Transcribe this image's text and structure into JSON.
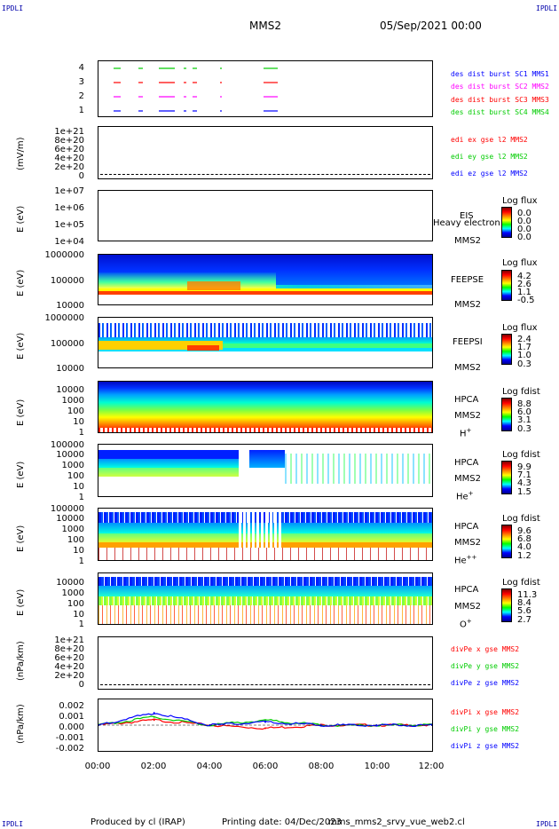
{
  "corners": {
    "tl": "IPDLI",
    "tr": "IPDLI",
    "bl": "IPDLI",
    "br": "IPDLI"
  },
  "header": {
    "spacecraft": "MMS2",
    "datetime": "05/Sep/2021 00:00"
  },
  "colors": {
    "red": "#ff0000",
    "magenta": "#ff00ff",
    "green": "#00cc00",
    "blue": "#0000ff"
  },
  "panels": {
    "p1": {
      "yticks": [
        "4",
        "3",
        "2",
        "1"
      ],
      "legend": [
        "des dist burst SC1 MMS1",
        "des dist burst SC2 MMS2",
        "des dist burst SC3 MMS3",
        "des dist burst SC4 MMS4"
      ]
    },
    "p2": {
      "ylabel": "(mV/m)",
      "yticks": [
        "1e+21",
        "8e+20",
        "6e+20",
        "4e+20",
        "2e+20",
        "0"
      ],
      "legend": [
        "edi ex gse l2 MMS2",
        "edi ey gse l2 MMS2",
        "edi ez gse l2 MMS2"
      ]
    },
    "p3": {
      "ylabel": "E (eV)",
      "yticks": [
        "1e+07",
        "1e+06",
        "1e+05",
        "1e+04"
      ],
      "inst": "EIS",
      "sc": "MMS2",
      "overlay": "Heavy electron to",
      "cbar_title": "Log flux",
      "cbar_vals": [
        "0.0",
        "0.0",
        "0.0",
        "0.0"
      ]
    },
    "p4": {
      "ylabel": "E (eV)",
      "yticks": [
        "1000000",
        "100000",
        "10000"
      ],
      "inst": "FEEPSE",
      "sc": "MMS2",
      "cbar_title": "Log flux",
      "cbar_vals": [
        "4.2",
        "2.6",
        "1.1",
        "-0.5"
      ]
    },
    "p5": {
      "ylabel": "E (eV)",
      "yticks": [
        "1000000",
        "100000",
        "10000"
      ],
      "inst": "FEEPSI",
      "sc": "MMS2",
      "cbar_title": "Log flux",
      "cbar_vals": [
        "2.4",
        "1.7",
        "1.0",
        "0.3"
      ]
    },
    "p6": {
      "ylabel": "E (eV)",
      "yticks": [
        "10000",
        "1000",
        "100",
        "10",
        "1"
      ],
      "inst": "HPCA",
      "sc": "MMS2",
      "species": "H",
      "sup": "+",
      "cbar_title": "Log fdist",
      "cbar_vals": [
        "8.8",
        "6.0",
        "3.1",
        "0.3"
      ]
    },
    "p7": {
      "ylabel": "E (eV)",
      "yticks": [
        "100000",
        "10000",
        "1000",
        "100",
        "10",
        "1"
      ],
      "inst": "HPCA",
      "sc": "MMS2",
      "species": "He",
      "sup": "+",
      "cbar_title": "Log fdist",
      "cbar_vals": [
        "9.9",
        "7.1",
        "4.3",
        "1.5"
      ]
    },
    "p8": {
      "ylabel": "E (eV)",
      "yticks": [
        "100000",
        "10000",
        "1000",
        "100",
        "10",
        "1"
      ],
      "inst": "HPCA",
      "sc": "MMS2",
      "species": "He",
      "sup": "++",
      "cbar_title": "Log fdist",
      "cbar_vals": [
        "9.6",
        "6.8",
        "4.0",
        "1.2"
      ]
    },
    "p9": {
      "ylabel": "E (eV)",
      "yticks": [
        "10000",
        "1000",
        "100",
        "10",
        "1"
      ],
      "inst": "HPCA",
      "sc": "MMS2",
      "species": "O",
      "sup": "+",
      "cbar_title": "Log fdist",
      "cbar_vals": [
        "11.3",
        "8.4",
        "5.6",
        "2.7"
      ]
    },
    "p10": {
      "ylabel": "(nPa/km)",
      "yticks": [
        "1e+21",
        "8e+20",
        "6e+20",
        "4e+20",
        "2e+20",
        "0"
      ],
      "legend": [
        "divPe x gse MMS2",
        "divPe y gse MMS2",
        "divPe z gse MMS2"
      ]
    },
    "p11": {
      "ylabel": "(nPa/km)",
      "yticks": [
        "0.002",
        "0.001",
        "0.000",
        "-0.001",
        "-0.002"
      ],
      "legend": [
        "divPi x gse MMS2",
        "divPi y gse MMS2",
        "divPi z gse MMS2"
      ]
    }
  },
  "xaxis": [
    "00:00",
    "02:00",
    "04:00",
    "06:00",
    "08:00",
    "10:00",
    "12:00"
  ],
  "footer": {
    "produced": "Produced by cl (IRAP)",
    "printing": "Printing date: 04/Dec/2023",
    "file": "mms_mms2_srvy_vue_web2.cl"
  },
  "chart_data": {
    "type": "line",
    "title": "MMS2",
    "x": [
      "00:00",
      "02:00",
      "04:00",
      "06:00",
      "08:00",
      "10:00",
      "12:00"
    ],
    "xlim": [
      "00:00",
      "12:00"
    ],
    "ylim": [
      -0.0025,
      0.0025
    ],
    "series": [
      {
        "name": "divPi x gse MMS2",
        "values": [
          0.0,
          0.0005,
          0.0,
          -0.0003,
          0.0,
          0.0,
          0.0
        ]
      },
      {
        "name": "divPi y gse MMS2",
        "values": [
          0.0,
          0.0008,
          0.0,
          0.0005,
          0.0,
          0.0,
          0.0
        ]
      },
      {
        "name": "divPi z gse MMS2",
        "values": [
          0.0,
          0.0012,
          0.0,
          0.0003,
          0.0,
          0.0,
          0.0
        ]
      }
    ]
  }
}
